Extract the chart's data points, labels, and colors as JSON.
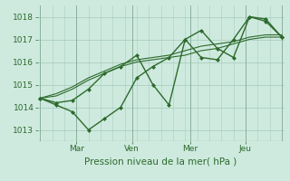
{
  "bg_color": "#ceeade",
  "grid_major_color": "#aacfbf",
  "grid_minor_color": "#c0ddd0",
  "line_color": "#2d6a2d",
  "marker_color": "#2d6a2d",
  "xlabel": "Pression niveau de la mer( hPa )",
  "ylim": [
    1012.5,
    1018.5
  ],
  "yticks": [
    1013,
    1014,
    1015,
    1016,
    1017,
    1018
  ],
  "xtick_labels": [
    "Mar",
    "Ven",
    "Mer",
    "Jeu"
  ],
  "xtick_positions": [
    0.15,
    0.38,
    0.62,
    0.85
  ],
  "series": [
    [
      1014.4,
      1014.2,
      1014.3,
      1014.8,
      1015.5,
      1015.8,
      1016.3,
      1015.0,
      1014.1,
      1017.0,
      1016.2,
      1016.1,
      1017.0,
      1018.0,
      1017.8,
      1017.1
    ],
    [
      1014.4,
      1014.1,
      1013.8,
      1013.0,
      1013.5,
      1014.0,
      1015.3,
      1015.8,
      1016.2,
      1017.0,
      1017.4,
      1016.6,
      1016.2,
      1018.0,
      1017.9,
      1017.1
    ],
    [
      1014.4,
      1014.5,
      1014.8,
      1015.2,
      1015.5,
      1015.8,
      1016.0,
      1016.1,
      1016.2,
      1016.3,
      1016.5,
      1016.6,
      1016.8,
      1017.0,
      1017.1,
      1017.1
    ],
    [
      1014.4,
      1014.6,
      1014.9,
      1015.3,
      1015.6,
      1015.9,
      1016.1,
      1016.2,
      1016.3,
      1016.5,
      1016.7,
      1016.8,
      1016.9,
      1017.1,
      1017.2,
      1017.2
    ]
  ],
  "has_markers": [
    true,
    true,
    false,
    false
  ],
  "linewidths": [
    1.0,
    1.0,
    0.8,
    0.8
  ],
  "n_points": 16,
  "vline_color_main": "#7a9a8a",
  "vline_color_minor": "#c0c0c0"
}
